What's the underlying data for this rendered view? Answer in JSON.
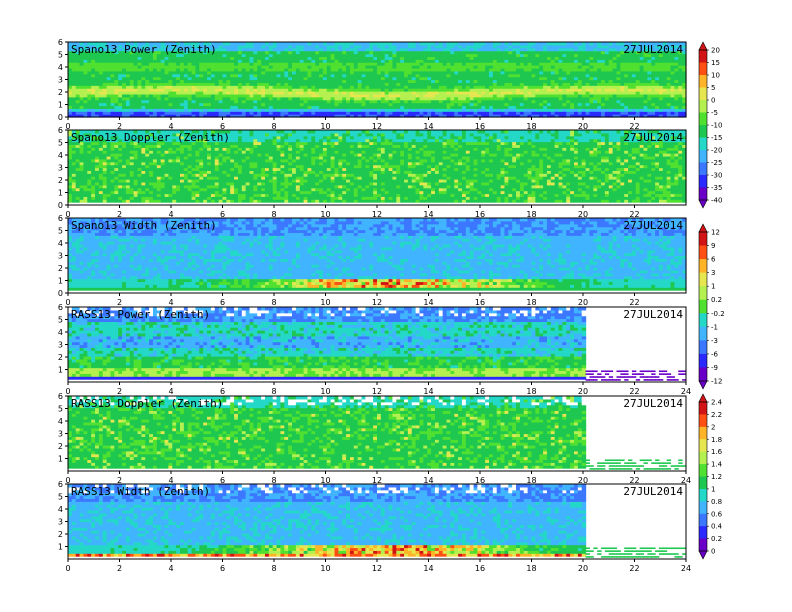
{
  "chart_data": [
    {
      "type": "heatmap",
      "title": "Spano13 Power (Zenith)",
      "date": "27JUL2014",
      "xlim": [
        0,
        24
      ],
      "xticks": [
        "0",
        "2",
        "4",
        "6",
        "8",
        "10",
        "12",
        "14",
        "16",
        "18",
        "20",
        "22"
      ],
      "ylim": [
        0,
        6
      ],
      "yticks": [
        "0",
        "1",
        "2",
        "3",
        "4",
        "5",
        "6"
      ],
      "data_end_hour": 24,
      "colorbar": "power"
    },
    {
      "type": "heatmap",
      "title": "Spano13 Doppler (Zenith)",
      "date": "27JUL2014",
      "xlim": [
        0,
        24
      ],
      "xticks": [
        "0",
        "2",
        "4",
        "6",
        "8",
        "10",
        "12",
        "14",
        "16",
        "18",
        "20",
        "22"
      ],
      "ylim": [
        0,
        6
      ],
      "yticks": [
        "0",
        "1",
        "2",
        "3",
        "4",
        "5",
        "6"
      ],
      "data_end_hour": 24,
      "colorbar": "doppler"
    },
    {
      "type": "heatmap",
      "title": "Spano13 Width (Zenith)",
      "date": "27JUL2014",
      "xlim": [
        0,
        24
      ],
      "xticks": [
        "0",
        "2",
        "4",
        "6",
        "8",
        "10",
        "12",
        "14",
        "16",
        "18",
        "20",
        "22"
      ],
      "ylim": [
        0,
        6
      ],
      "yticks": [
        "0",
        "1",
        "2",
        "3",
        "4",
        "5",
        "6"
      ],
      "data_end_hour": 24,
      "colorbar": "width"
    },
    {
      "type": "heatmap",
      "title": "RASS13 Power (Zenith)",
      "date": "27JUL2014",
      "xlim": [
        0,
        24
      ],
      "xticks": [
        "0",
        "2",
        "4",
        "6",
        "8",
        "10",
        "12",
        "14",
        "16",
        "18",
        "20",
        "22",
        "24"
      ],
      "ylim": [
        0,
        6
      ],
      "yticks": [
        "1",
        "2",
        "3",
        "4",
        "5",
        "6"
      ],
      "data_end_hour": 20.1,
      "colorbar": "power"
    },
    {
      "type": "heatmap",
      "title": "RASS13 Doppler (Zenith)",
      "date": "27JUL2014",
      "xlim": [
        0,
        24
      ],
      "xticks": [
        "0",
        "2",
        "4",
        "6",
        "8",
        "10",
        "12",
        "14",
        "16",
        "18",
        "20",
        "22",
        "24"
      ],
      "ylim": [
        0,
        6
      ],
      "yticks": [
        "1",
        "2",
        "3",
        "4",
        "5",
        "6"
      ],
      "data_end_hour": 20.1,
      "colorbar": "doppler"
    },
    {
      "type": "heatmap",
      "title": "RASS13 Width (Zenith)",
      "date": "27JUL2014",
      "xlim": [
        0,
        24
      ],
      "xticks": [
        "0",
        "2",
        "4",
        "6",
        "8",
        "10",
        "12",
        "14",
        "16",
        "18",
        "20",
        "22",
        "24"
      ],
      "ylim": [
        0,
        6
      ],
      "yticks": [
        "1",
        "2",
        "3",
        "4",
        "5",
        "6"
      ],
      "data_end_hour": 20.1,
      "colorbar": "width"
    }
  ],
  "colorbars": [
    {
      "id": "power",
      "labels": [
        "20",
        "15",
        "10",
        "5",
        "0",
        "-5",
        "-10",
        "-15",
        "-20",
        "-25",
        "-30",
        "-35",
        "-40"
      ]
    },
    {
      "id": "doppler",
      "labels": [
        "12",
        "9",
        "6",
        "3",
        "1",
        "0.2",
        "-0.2",
        "-1",
        "-3",
        "-6",
        "-9",
        "-12"
      ]
    },
    {
      "id": "width",
      "labels": [
        "2.4",
        "2.2",
        "2",
        "1.8",
        "1.6",
        "1.4",
        "1.2",
        "1",
        "0.8",
        "0.6",
        "0.4",
        "0.2",
        "0"
      ]
    }
  ],
  "palette": [
    "#6a00c8",
    "#2a2aff",
    "#3c78ff",
    "#40b4ff",
    "#24d8c8",
    "#1ec850",
    "#50e030",
    "#b4f050",
    "#e6e650",
    "#ffb428",
    "#ff5014",
    "#d21414"
  ]
}
